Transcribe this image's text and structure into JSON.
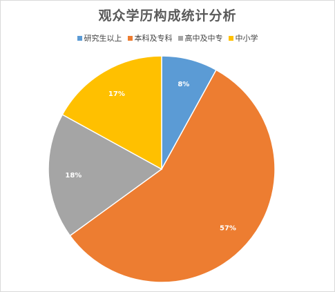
{
  "chart_data": {
    "type": "pie",
    "title": "观众学历构成统计分析",
    "categories": [
      "研究生以上",
      "本科及专科",
      "高中及中专",
      "中小学"
    ],
    "values": [
      8,
      57,
      18,
      17
    ],
    "data_labels": [
      "8%",
      "57%",
      "18%",
      "17%"
    ],
    "colors": [
      "#5b9bd5",
      "#ed7d31",
      "#a5a5a5",
      "#ffc000"
    ],
    "legend_position": "top",
    "start_angle": "12 o'clock",
    "direction": "clockwise"
  }
}
